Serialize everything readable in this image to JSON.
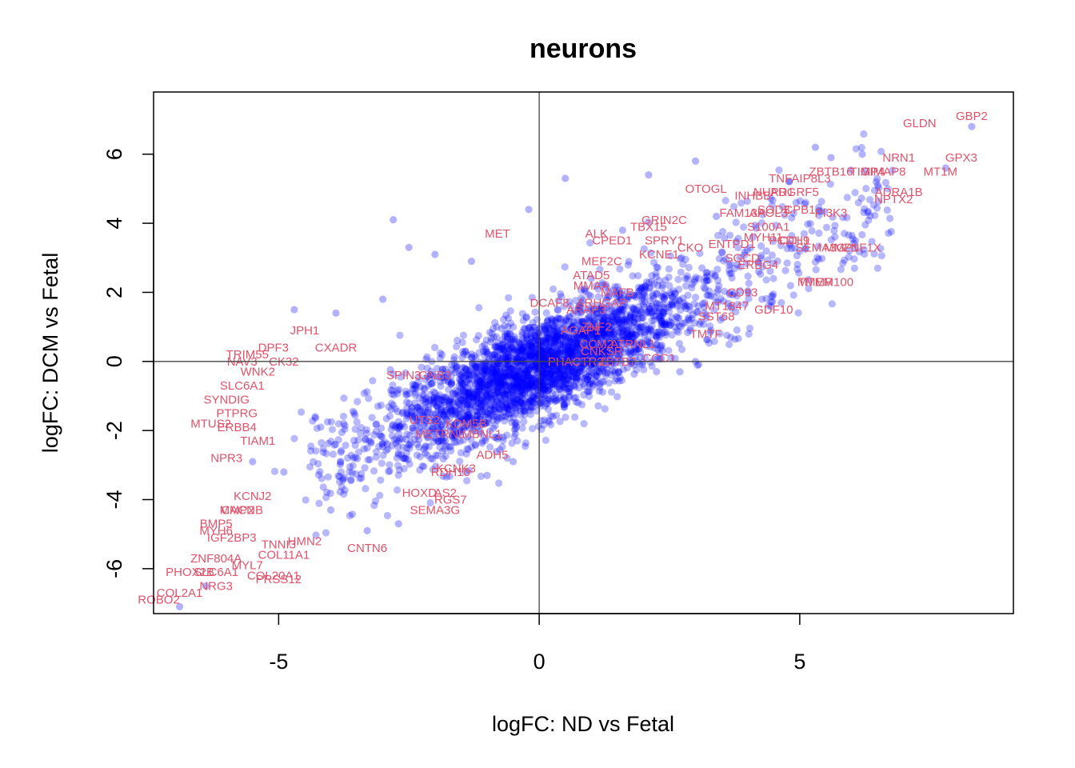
{
  "chart_data": {
    "type": "scatter",
    "title": "neurons",
    "xlabel": "logFC: ND vs Fetal",
    "ylabel": "logFC: DCM vs Fetal",
    "xlim": [
      -7.4,
      9.1
    ],
    "ylim": [
      -7.3,
      7.8
    ],
    "xticks": [
      -5,
      0,
      5
    ],
    "yticks": [
      -6,
      -4,
      -2,
      0,
      2,
      4,
      6
    ],
    "reference_lines": {
      "x": 0,
      "y": 0
    },
    "grid": false,
    "point_color": "#0000FF",
    "label_color": "#DF536B",
    "points": [
      [
        -0.2,
        4.4
      ],
      [
        0.5,
        5.3
      ],
      [
        -2.8,
        4.1
      ],
      [
        -4.7,
        1.5
      ],
      [
        -3.9,
        1.4
      ],
      [
        -1.3,
        2.9
      ],
      [
        1.6,
        3.8
      ],
      [
        2.1,
        5.4
      ],
      [
        3.0,
        5.8
      ],
      [
        3.4,
        4.2
      ],
      [
        4.8,
        5.2
      ],
      [
        5.3,
        6.2
      ],
      [
        5.6,
        5.9
      ],
      [
        6.5,
        5.1
      ],
      [
        7.8,
        5.6
      ],
      [
        8.3,
        6.8
      ],
      [
        3.0,
        0.0
      ],
      [
        2.7,
        -0.3
      ],
      [
        -1.0,
        -3.3
      ],
      [
        -0.5,
        -2.9
      ],
      [
        -2.5,
        3.3
      ],
      [
        -2.0,
        3.1
      ],
      [
        -3.0,
        1.8
      ],
      [
        1.0,
        2.4
      ],
      [
        2.4,
        1.8
      ],
      [
        -4.3,
        -1.6
      ],
      [
        -5.5,
        -2.9
      ],
      [
        -6.4,
        -6.5
      ],
      [
        -6.9,
        -7.1
      ],
      [
        -4.9,
        -3.2
      ],
      [
        -4.0,
        -4.3
      ],
      [
        -3.3,
        -4.9
      ],
      [
        -2.7,
        -4.7
      ],
      [
        3.8,
        2.8
      ],
      [
        4.1,
        3.6
      ],
      [
        6.2,
        6.0
      ]
    ],
    "labels": [
      {
        "text": "GBP2",
        "x": 8.3,
        "y": 7.1
      },
      {
        "text": "GLDN",
        "x": 7.3,
        "y": 6.9
      },
      {
        "text": "NRN1",
        "x": 6.9,
        "y": 5.9
      },
      {
        "text": "GPX3",
        "x": 8.1,
        "y": 5.9
      },
      {
        "text": "TNFAIP8L3",
        "x": 5.0,
        "y": 5.3
      },
      {
        "text": "ZBTB16",
        "x": 5.6,
        "y": 5.5
      },
      {
        "text": "TIMP4",
        "x": 6.3,
        "y": 5.5
      },
      {
        "text": "GIMAP8",
        "x": 6.6,
        "y": 5.5
      },
      {
        "text": "MT1M",
        "x": 7.7,
        "y": 5.5
      },
      {
        "text": "ADRA1B",
        "x": 6.9,
        "y": 4.9
      },
      {
        "text": "NPTX2",
        "x": 6.8,
        "y": 4.7
      },
      {
        "text": "OTOGL",
        "x": 3.2,
        "y": 5.0
      },
      {
        "text": "INHBB",
        "x": 4.1,
        "y": 4.8
      },
      {
        "text": "NUPR1",
        "x": 4.5,
        "y": 4.9
      },
      {
        "text": "ADGRF5",
        "x": 4.9,
        "y": 4.9
      },
      {
        "text": "SOD3",
        "x": 4.5,
        "y": 4.4
      },
      {
        "text": "CPB1",
        "x": 5.0,
        "y": 4.4
      },
      {
        "text": "PI3K3",
        "x": 5.6,
        "y": 4.3
      },
      {
        "text": "FAM13A",
        "x": 3.9,
        "y": 4.3
      },
      {
        "text": "APOL3",
        "x": 4.4,
        "y": 4.3
      },
      {
        "text": "S100A1",
        "x": 4.4,
        "y": 3.9
      },
      {
        "text": "MYH11",
        "x": 4.3,
        "y": 3.6
      },
      {
        "text": "PCDH9",
        "x": 4.8,
        "y": 3.5
      },
      {
        "text": "CCL1",
        "x": 4.9,
        "y": 3.5
      },
      {
        "text": "MMP1",
        "x": 5.8,
        "y": 3.3
      },
      {
        "text": "SEMA3G",
        "x": 5.4,
        "y": 3.3
      },
      {
        "text": "ZNF1X",
        "x": 6.2,
        "y": 3.3
      },
      {
        "text": "SGCD",
        "x": 3.9,
        "y": 3.0
      },
      {
        "text": "ERBG4",
        "x": 4.2,
        "y": 2.8
      },
      {
        "text": "ENTPD1",
        "x": 3.7,
        "y": 3.4
      },
      {
        "text": "GRIN2C",
        "x": 2.4,
        "y": 4.1
      },
      {
        "text": "TBX15",
        "x": 2.1,
        "y": 3.9
      },
      {
        "text": "ALK",
        "x": 1.1,
        "y": 3.7
      },
      {
        "text": "CPED1",
        "x": 1.4,
        "y": 3.5
      },
      {
        "text": "SPRY1",
        "x": 2.4,
        "y": 3.5
      },
      {
        "text": "CKO",
        "x": 2.9,
        "y": 3.3
      },
      {
        "text": "MET",
        "x": -0.8,
        "y": 3.7
      },
      {
        "text": "KCNE1",
        "x": 2.3,
        "y": 3.1
      },
      {
        "text": "MEF2C",
        "x": 1.2,
        "y": 2.9
      },
      {
        "text": "ATAD5",
        "x": 1.0,
        "y": 2.5
      },
      {
        "text": "MMAA",
        "x": 1.0,
        "y": 2.2
      },
      {
        "text": "MAFB",
        "x": 1.5,
        "y": 2.0
      },
      {
        "text": "TMEM100",
        "x": 5.5,
        "y": 2.3
      },
      {
        "text": "MTMR",
        "x": 5.3,
        "y": 2.3
      },
      {
        "text": "GDF10",
        "x": 4.5,
        "y": 1.5
      },
      {
        "text": "CD93",
        "x": 3.9,
        "y": 2.0
      },
      {
        "text": "MT1847",
        "x": 3.6,
        "y": 1.6
      },
      {
        "text": "SST68",
        "x": 3.4,
        "y": 1.3
      },
      {
        "text": "DCAF8",
        "x": 0.2,
        "y": 1.7
      },
      {
        "text": "ARHGAP",
        "x": 1.2,
        "y": 1.7
      },
      {
        "text": "ARAP3",
        "x": 0.9,
        "y": 1.5
      },
      {
        "text": "AGAP1",
        "x": 0.8,
        "y": 0.9
      },
      {
        "text": "ZNF2",
        "x": 1.1,
        "y": 1.0
      },
      {
        "text": "TMTF",
        "x": 3.2,
        "y": 0.8
      },
      {
        "text": "CCM2",
        "x": 1.1,
        "y": 0.5
      },
      {
        "text": "CNKSR",
        "x": 1.2,
        "y": 0.3
      },
      {
        "text": "ATRNL1",
        "x": 1.8,
        "y": 0.5
      },
      {
        "text": "PHACTR3",
        "x": 0.7,
        "y": 0.0
      },
      {
        "text": "ZBTB7",
        "x": 1.5,
        "y": 0.0
      },
      {
        "text": "CCC1",
        "x": 2.3,
        "y": 0.1
      },
      {
        "text": "JPH1",
        "x": -4.5,
        "y": 0.9
      },
      {
        "text": "CXADR",
        "x": -3.9,
        "y": 0.4
      },
      {
        "text": "DPF3",
        "x": -5.1,
        "y": 0.4
      },
      {
        "text": "TRIM55",
        "x": -5.6,
        "y": 0.2
      },
      {
        "text": "NAV3",
        "x": -5.7,
        "y": 0.0
      },
      {
        "text": "CK32",
        "x": -4.9,
        "y": 0.0
      },
      {
        "text": "WNK2",
        "x": -5.4,
        "y": -0.3
      },
      {
        "text": "SLC6A1",
        "x": -5.7,
        "y": -0.7
      },
      {
        "text": "SYNDIG",
        "x": -6.0,
        "y": -1.1
      },
      {
        "text": "PTPRG",
        "x": -5.8,
        "y": -1.5
      },
      {
        "text": "MTUS2",
        "x": -6.3,
        "y": -1.8
      },
      {
        "text": "ERBB4",
        "x": -5.8,
        "y": -1.9
      },
      {
        "text": "TIAM1",
        "x": -5.4,
        "y": -2.3
      },
      {
        "text": "NPR3",
        "x": -6.0,
        "y": -2.8
      },
      {
        "text": "KCNJ2",
        "x": -5.5,
        "y": -3.9
      },
      {
        "text": "MMP2",
        "x": -5.8,
        "y": -4.3
      },
      {
        "text": "CACNB",
        "x": -5.7,
        "y": -4.3
      },
      {
        "text": "BMP5",
        "x": -6.2,
        "y": -4.7
      },
      {
        "text": "MYH6",
        "x": -6.2,
        "y": -4.9
      },
      {
        "text": "IGF2BP3",
        "x": -5.9,
        "y": -5.1
      },
      {
        "text": "TNNI3",
        "x": -5.0,
        "y": -5.3
      },
      {
        "text": "HMN2",
        "x": -4.5,
        "y": -5.2
      },
      {
        "text": "COL11A1",
        "x": -4.9,
        "y": -5.6
      },
      {
        "text": "CNTN6",
        "x": -3.3,
        "y": -5.4
      },
      {
        "text": "ZNF804A",
        "x": -6.2,
        "y": -5.7
      },
      {
        "text": "MYL7",
        "x": -5.6,
        "y": -5.9
      },
      {
        "text": "PHOX2B",
        "x": -6.7,
        "y": -6.1
      },
      {
        "text": "SLC6A1",
        "x": -6.2,
        "y": -6.1
      },
      {
        "text": "COL20A1",
        "x": -5.1,
        "y": -6.2
      },
      {
        "text": "PRSS12",
        "x": -5.0,
        "y": -6.3
      },
      {
        "text": "NRG3",
        "x": -6.2,
        "y": -6.5
      },
      {
        "text": "COL2A1",
        "x": -6.9,
        "y": -6.7
      },
      {
        "text": "ROBO2",
        "x": -7.3,
        "y": -6.9
      },
      {
        "text": "UTS2",
        "x": -2.2,
        "y": -1.7
      },
      {
        "text": "KDM5B",
        "x": -1.4,
        "y": -1.8
      },
      {
        "text": "METRNL",
        "x": -1.9,
        "y": -2.1
      },
      {
        "text": "MBNL1",
        "x": -1.1,
        "y": -2.1
      },
      {
        "text": "HOXD",
        "x": -2.3,
        "y": -3.8
      },
      {
        "text": "AS2",
        "x": -1.8,
        "y": -3.8
      },
      {
        "text": "RGS7",
        "x": -1.7,
        "y": -4.0
      },
      {
        "text": "SEMA3G",
        "x": -2.0,
        "y": -4.3
      },
      {
        "text": "ADH5",
        "x": -0.9,
        "y": -2.7
      },
      {
        "text": "KCNK3",
        "x": -1.6,
        "y": -3.1
      },
      {
        "text": "SPIN3",
        "x": -2.6,
        "y": -0.4
      },
      {
        "text": "GNB3",
        "x": -2.0,
        "y": -0.4
      },
      {
        "text": "RDH10",
        "x": -1.7,
        "y": -3.2
      }
    ]
  }
}
